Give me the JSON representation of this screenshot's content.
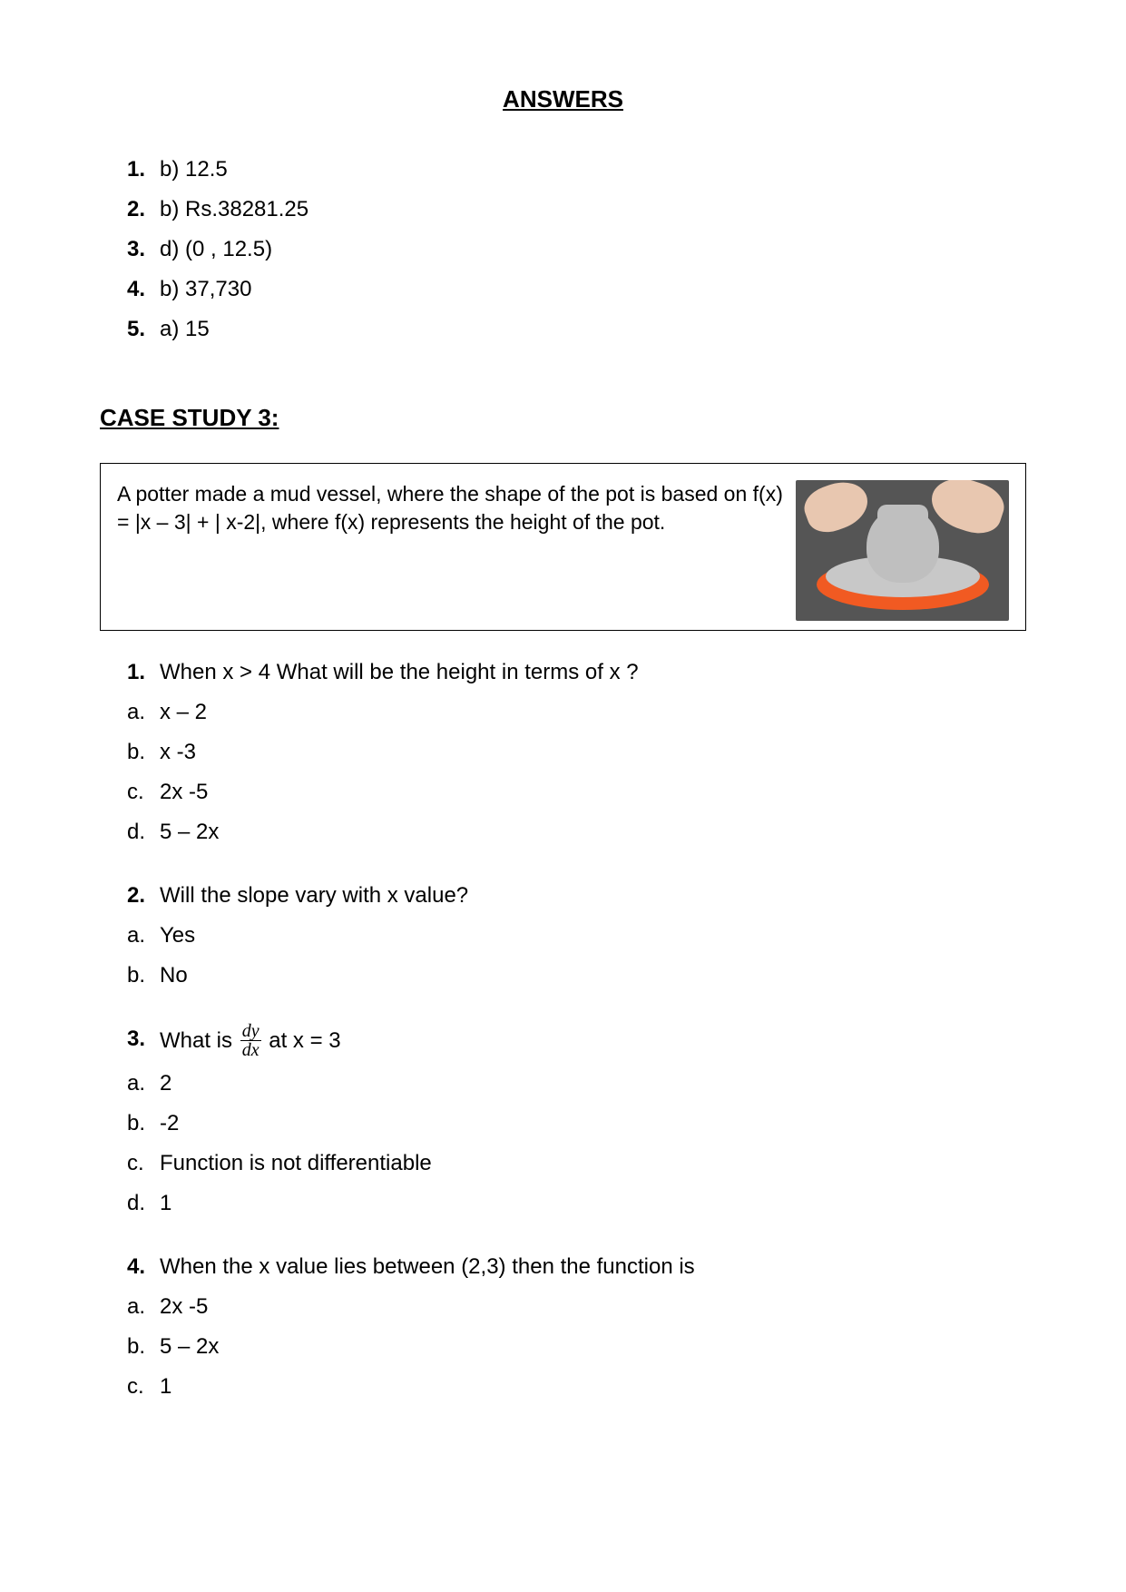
{
  "title": "ANSWERS",
  "answers": [
    {
      "n": "1.",
      "t": "b) 12.5"
    },
    {
      "n": "2.",
      "t": "b) Rs.38281.25"
    },
    {
      "n": "3.",
      "t": "d) (0 , 12.5)"
    },
    {
      "n": "4.",
      "t": "b) 37,730"
    },
    {
      "n": "5.",
      "t": "a) 15"
    }
  ],
  "case_heading": "CASE STUDY 3:",
  "case_text": "A potter made a mud vessel, where the shape of the pot is based on   f(x) = |x – 3| + | x-2|, where f(x) represents the height of the pot.",
  "q1": {
    "n": "1.",
    "t": "When x > 4 What will be the height in terms of x ?",
    "opts": [
      {
        "l": "a.",
        "t": "x – 2"
      },
      {
        "l": "b.",
        "t": " x -3"
      },
      {
        "l": "c.",
        "t": "2x -5"
      },
      {
        "l": "d.",
        "t": "5 – 2x"
      }
    ]
  },
  "q2": {
    "n": "2.",
    "t": "Will the slope vary with x value?",
    "opts": [
      {
        "l": "a.",
        "t": "Yes"
      },
      {
        "l": "b.",
        "t": "No"
      }
    ]
  },
  "q3": {
    "n": "3.",
    "pre": "What is ",
    "num": "dy",
    "den": "dx",
    "post": " at x = 3",
    "opts": [
      {
        "l": "a.",
        "t": "2"
      },
      {
        "l": "b.",
        "t": "-2"
      },
      {
        "l": "c.",
        "t": "Function is not differentiable"
      },
      {
        "l": "d.",
        "t": "1"
      }
    ]
  },
  "q4": {
    "n": "4.",
    "t": "When the x value lies between (2,3) then the function is",
    "opts": [
      {
        "l": "a.",
        "t": "2x -5"
      },
      {
        "l": "b.",
        "t": "5 – 2x"
      },
      {
        "l": "c.",
        "t": "1"
      }
    ]
  }
}
